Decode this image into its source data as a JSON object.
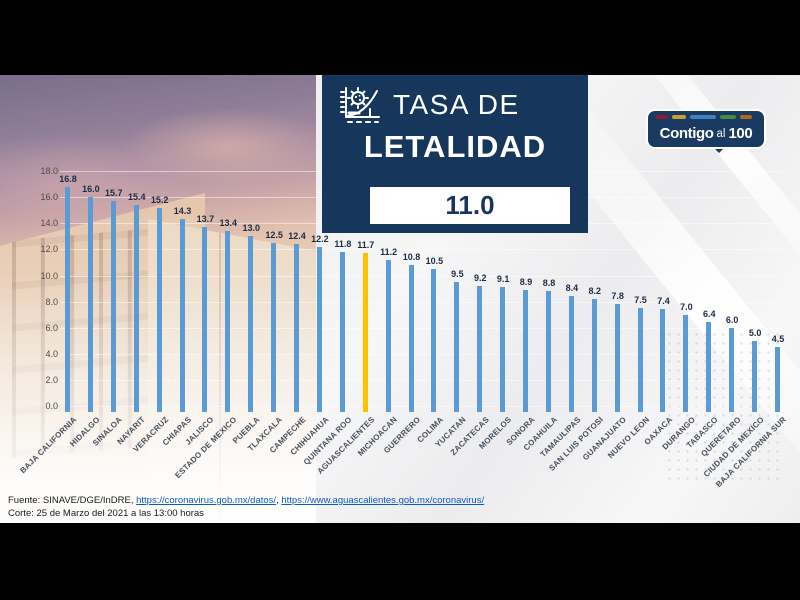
{
  "header": {
    "title_line1": "TASA DE",
    "title_line2": "LETALIDAD",
    "national_rate": "11.0"
  },
  "logo": {
    "part1": "Contigo",
    "part2": "al",
    "part3": "100",
    "stripes": [
      {
        "color": "#8c1d2f",
        "width": 12
      },
      {
        "color": "#c9a127",
        "width": 14
      },
      {
        "color": "#3f7fbf",
        "width": 26
      },
      {
        "color": "#4c8b3e",
        "width": 16
      },
      {
        "color": "#b4641e",
        "width": 12
      }
    ]
  },
  "footer": {
    "source_prefix": "Fuente: SINAVE/DGE/InDRE, ",
    "link1": "https://coronavirus.gob.mx/datos/",
    "separator": ", ",
    "link2": "https://www.aguascalientes.gob.mx/coronavirus/",
    "cutoff": "Corte: 25 de Marzo del 2021 a las 13:00 horas"
  },
  "chart_data": {
    "type": "bar",
    "title": "TASA DE LETALIDAD",
    "national_rate": 11.0,
    "categories": [
      "BAJA CALIFORNIA",
      "HIDALGO",
      "SINALOA",
      "NAYARIT",
      "VERACRUZ",
      "CHIAPAS",
      "JALISCO",
      "ESTADO DE MEXICO",
      "PUEBLA",
      "TLAXCALA",
      "CAMPECHE",
      "CHIHUAHUA",
      "QUINTANA ROO",
      "AGUASCALIENTES",
      "MICHOACAN",
      "GUERRERO",
      "COLIMA",
      "YUCATAN",
      "ZACATECAS",
      "MORELOS",
      "SONORA",
      "COAHUILA",
      "TAMAULIPAS",
      "SAN LUIS POTOSI",
      "GUANAJUATO",
      "NUEVO LEON",
      "OAXACA",
      "DURANGO",
      "TABASCO",
      "QUERETARO",
      "CIUDAD DE MEXICO",
      "BAJA CALIFORNIA SUR"
    ],
    "values": [
      16.8,
      16.0,
      15.7,
      15.4,
      15.2,
      14.3,
      13.7,
      13.4,
      13.0,
      12.5,
      12.4,
      12.2,
      11.8,
      11.7,
      11.2,
      10.8,
      10.5,
      9.5,
      9.2,
      9.1,
      8.9,
      8.8,
      8.4,
      8.2,
      7.8,
      7.5,
      7.4,
      7.0,
      6.4,
      6.0,
      5.0,
      4.5
    ],
    "highlight": {
      "category": "AGUASCALIENTES",
      "index": 13,
      "color": "#ffc000"
    },
    "bar_color": "#5b9bd5",
    "value_label_color": "#1d2c44",
    "ylim": [
      0,
      18
    ],
    "ytick_step": 2,
    "grid": true,
    "legend": false,
    "xlabel": "",
    "ylabel": ""
  },
  "colors": {
    "navy": "#16365c",
    "logo_navy": "#1b3a61",
    "background_light": "#f4f4f5",
    "letterbox": "#000000",
    "link": "#0b5bc4"
  }
}
